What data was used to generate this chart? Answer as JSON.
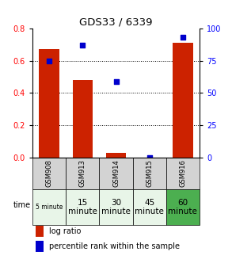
{
  "title": "GDS33 / 6339",
  "samples": [
    "GSM908",
    "GSM913",
    "GSM914",
    "GSM915",
    "GSM916"
  ],
  "time_labels": [
    "5 minute",
    "15\nminute",
    "30\nminute",
    "45\nminute",
    "60\nminute"
  ],
  "log_ratio": [
    0.67,
    0.48,
    0.025,
    0.0,
    0.71
  ],
  "percentile_rank": [
    75,
    87,
    59,
    0,
    93
  ],
  "bar_color": "#cc2200",
  "dot_color": "#0000cc",
  "ylim_left": [
    0,
    0.8
  ],
  "ylim_right": [
    0,
    100
  ],
  "yticks_left": [
    0,
    0.2,
    0.4,
    0.6,
    0.8
  ],
  "yticks_right": [
    0,
    25,
    50,
    75,
    100
  ],
  "bg_color": "#ffffff",
  "sample_bg": "#d3d3d3",
  "time_colors": [
    "#e8f5e8",
    "#e8f5e8",
    "#e8f5e8",
    "#e8f5e8",
    "#4caf50"
  ],
  "time_fontsizes": [
    5.5,
    7.5,
    7.5,
    7.5,
    7.5
  ]
}
